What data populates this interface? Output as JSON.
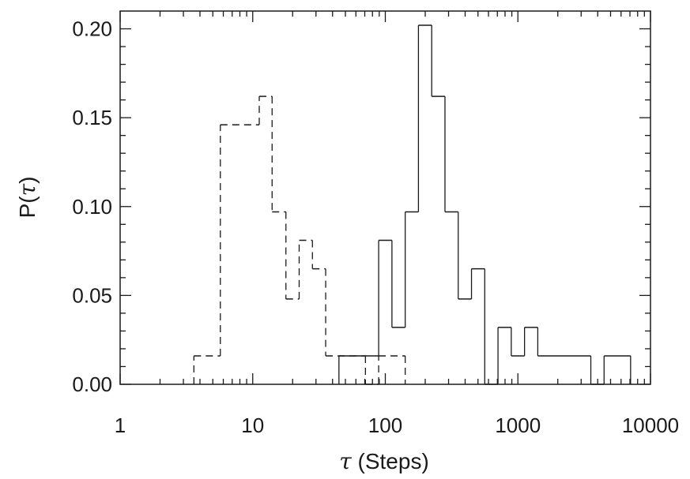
{
  "chart_data": {
    "type": "histogram",
    "xlabel": {
      "symbol": "τ",
      "text": " (Steps)"
    },
    "ylabel": {
      "prefix": "P(",
      "symbol": "τ",
      "suffix": ")"
    },
    "xscale": "log",
    "xlim": [
      1,
      10000
    ],
    "ylim": [
      0,
      0.21
    ],
    "x_ticks": [
      {
        "value": 1,
        "label": "1"
      },
      {
        "value": 10,
        "label": "10"
      },
      {
        "value": 100,
        "label": "100"
      },
      {
        "value": 1000,
        "label": "1000"
      },
      {
        "value": 10000,
        "label": "10000"
      }
    ],
    "y_ticks": [
      {
        "value": 0,
        "label": "0.00"
      },
      {
        "value": 0.05,
        "label": "0.05"
      },
      {
        "value": 0.1,
        "label": "0.10"
      },
      {
        "value": 0.15,
        "label": "0.15"
      },
      {
        "value": 0.2,
        "label": "0.20"
      }
    ],
    "series": [
      {
        "style": "dashed",
        "bins": [
          {
            "x0": 3.6,
            "x1": 5.7,
            "y": 0.016
          },
          {
            "x0": 5.7,
            "x1": 11.2,
            "y": 0.146
          },
          {
            "x0": 11.2,
            "x1": 14.0,
            "y": 0.162
          },
          {
            "x0": 14.0,
            "x1": 17.8,
            "y": 0.097
          },
          {
            "x0": 17.8,
            "x1": 22.4,
            "y": 0.048
          },
          {
            "x0": 22.4,
            "x1": 28.2,
            "y": 0.081
          },
          {
            "x0": 28.2,
            "x1": 35.5,
            "y": 0.065
          },
          {
            "x0": 35.5,
            "x1": 70.8,
            "y": 0.016
          },
          {
            "x0": 70.8,
            "x1": 89.1,
            "y": 0.0
          },
          {
            "x0": 89.1,
            "x1": 141.3,
            "y": 0.016
          }
        ]
      },
      {
        "style": "solid",
        "bins": [
          {
            "x0": 44.7,
            "x1": 89.1,
            "y": 0.016
          },
          {
            "x0": 89.1,
            "x1": 112.2,
            "y": 0.081
          },
          {
            "x0": 112.2,
            "x1": 141.3,
            "y": 0.032
          },
          {
            "x0": 141.3,
            "x1": 177.8,
            "y": 0.097
          },
          {
            "x0": 177.8,
            "x1": 223.9,
            "y": 0.202
          },
          {
            "x0": 223.9,
            "x1": 281.8,
            "y": 0.162
          },
          {
            "x0": 281.8,
            "x1": 354.8,
            "y": 0.097
          },
          {
            "x0": 354.8,
            "x1": 446.7,
            "y": 0.048
          },
          {
            "x0": 446.7,
            "x1": 562.3,
            "y": 0.065
          },
          {
            "x0": 562.3,
            "x1": 707.9,
            "y": 0.0
          },
          {
            "x0": 707.9,
            "x1": 891.3,
            "y": 0.032
          },
          {
            "x0": 891.3,
            "x1": 1122.0,
            "y": 0.016
          },
          {
            "x0": 1122.0,
            "x1": 1412.5,
            "y": 0.032
          },
          {
            "x0": 1412.5,
            "x1": 3548.1,
            "y": 0.016
          },
          {
            "x0": 3548.1,
            "x1": 4466.8,
            "y": 0.0
          },
          {
            "x0": 4466.8,
            "x1": 7079.5,
            "y": 0.016
          }
        ]
      }
    ]
  }
}
